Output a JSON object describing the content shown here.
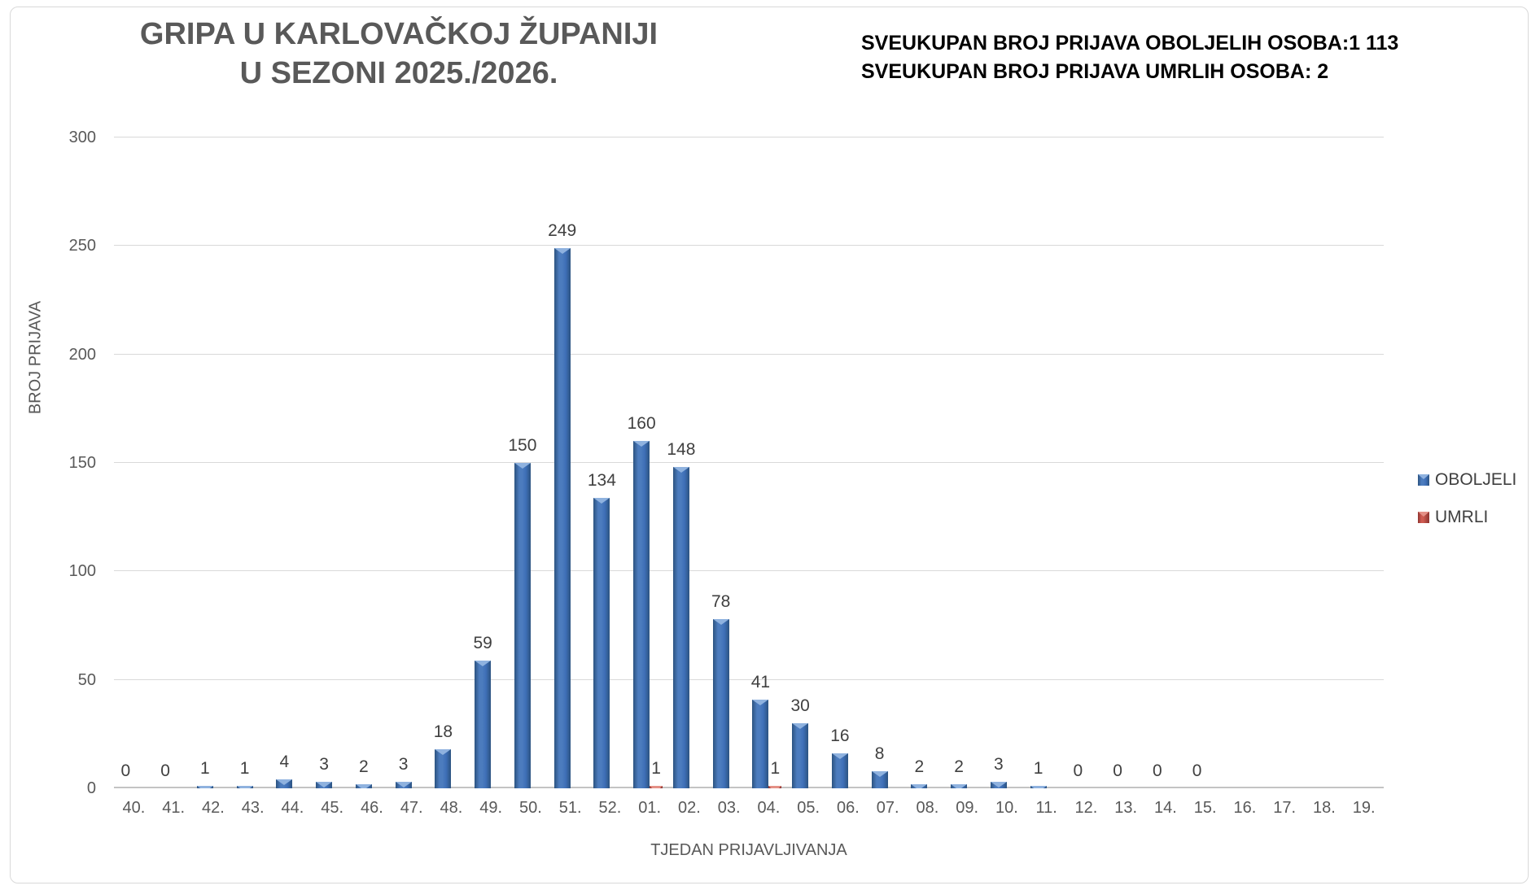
{
  "title": {
    "line1": "GRIPA U KARLOVAČKOJ ŽUPANIJI",
    "line2": "U SEZONI 2025./2026."
  },
  "stats": {
    "line1": "SVEUKUPAN BROJ PRIJAVA OBOLJELIH OSOBA:1 113",
    "line2": "SVEUKUPAN BROJ PRIJAVA UMRLIH OSOBA: 2"
  },
  "chart_data": {
    "type": "bar",
    "title": "GRIPA U KARLOVAČKOJ ŽUPANIJI U SEZONI 2025./2026.",
    "xlabel": "TJEDAN PRIJAVLJIVANJA",
    "ylabel": "BROJ PRIJAVA",
    "ylim": [
      0,
      300
    ],
    "yticks": [
      0,
      50,
      100,
      150,
      200,
      250,
      300
    ],
    "grid": true,
    "legend_position": "right",
    "categories": [
      "40.",
      "41.",
      "42.",
      "43.",
      "44.",
      "45.",
      "46.",
      "47.",
      "48.",
      "49.",
      "50.",
      "51.",
      "52.",
      "01.",
      "02.",
      "03.",
      "04.",
      "05.",
      "06.",
      "07.",
      "08.",
      "09.",
      "10.",
      "11.",
      "12.",
      "13.",
      "14.",
      "15.",
      "16.",
      "17.",
      "18.",
      "19."
    ],
    "series": [
      {
        "name": "OBOLJELI",
        "color": "#3E6FB7",
        "color_edge": "#2C5380",
        "color_mid": "#4C7CBE",
        "color_light": "#8FB2DF",
        "values": [
          0,
          0,
          1,
          1,
          4,
          3,
          2,
          3,
          18,
          59,
          150,
          249,
          134,
          160,
          148,
          78,
          41,
          30,
          16,
          8,
          2,
          2,
          3,
          1,
          0,
          0,
          0,
          0,
          null,
          null,
          null,
          null
        ]
      },
      {
        "name": "UMRLI",
        "color": "#B04A42",
        "color_edge": "#8E3430",
        "color_mid": "#CE5B51",
        "color_light": "#E49086",
        "values": [
          null,
          null,
          null,
          null,
          null,
          null,
          null,
          null,
          null,
          null,
          null,
          null,
          null,
          1,
          null,
          null,
          1,
          null,
          null,
          null,
          null,
          null,
          null,
          null,
          null,
          null,
          null,
          null,
          null,
          null,
          null,
          null
        ]
      }
    ]
  },
  "colors": {
    "grid": "#D9D9D9",
    "axis": "#C3C3C3",
    "text_gray": "#595959",
    "label_gray": "#404040",
    "frame": "#D9D9D9"
  }
}
